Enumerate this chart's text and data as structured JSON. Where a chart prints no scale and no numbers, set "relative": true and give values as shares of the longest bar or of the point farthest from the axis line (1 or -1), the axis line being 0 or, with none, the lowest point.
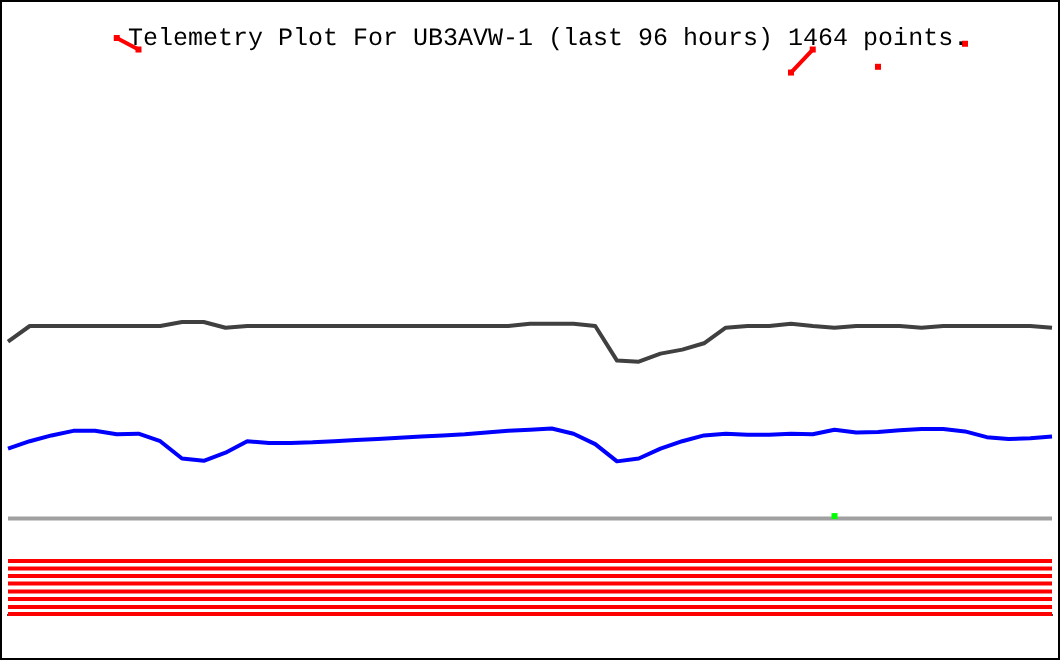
{
  "chart_data": {
    "type": "line",
    "title": "Telemetry Plot For UB3AVW-1 (last 96 hours) 1464 points.",
    "relative": true,
    "marker": "none",
    "categories": [
      null,
      null,
      null,
      null,
      null,
      null,
      null,
      null,
      null,
      null,
      null,
      null,
      null,
      null,
      null,
      null,
      null,
      null,
      null,
      null,
      null,
      null,
      null,
      null,
      null,
      null,
      null,
      null,
      null,
      null,
      null,
      null,
      null,
      null,
      null,
      null,
      null,
      null,
      null,
      null,
      null,
      null,
      null,
      null,
      null,
      null,
      null,
      null,
      null
    ],
    "series": [
      {
        "color": "#404040",
        "values": [
          0.473,
          0.5,
          0.5,
          0.5,
          0.5,
          0.5,
          0.5,
          0.5,
          0.507,
          0.507,
          0.497,
          0.5,
          0.5,
          0.5,
          0.5,
          0.5,
          0.5,
          0.5,
          0.5,
          0.5,
          0.5,
          0.5,
          0.5,
          0.5,
          0.504,
          0.504,
          0.504,
          0.5,
          0.44,
          0.438,
          0.452,
          0.459,
          0.47,
          0.497,
          0.5,
          0.5,
          0.504,
          0.5,
          0.497,
          0.5,
          0.5,
          0.5,
          0.497,
          0.5,
          0.5,
          0.5,
          0.5,
          0.5,
          0.497
        ]
      },
      {
        "color": "#0000ff",
        "values": [
          0.287,
          0.3,
          0.31,
          0.318,
          0.318,
          0.312,
          0.313,
          0.3,
          0.27,
          0.266,
          0.28,
          0.3,
          0.297,
          0.297,
          0.298,
          0.3,
          0.302,
          0.304,
          0.306,
          0.308,
          0.31,
          0.312,
          0.315,
          0.318,
          0.32,
          0.322,
          0.313,
          0.295,
          0.265,
          0.27,
          0.287,
          0.3,
          0.31,
          0.313,
          0.311,
          0.311,
          0.313,
          0.312,
          0.32,
          0.315,
          0.316,
          0.319,
          0.321,
          0.321,
          0.317,
          0.307,
          0.304,
          0.305,
          0.308
        ]
      },
      {
        "color": "#a0a0a0",
        "values": [
          0.166,
          0.166,
          0.166,
          0.166,
          0.166,
          0.166,
          0.166,
          0.166,
          0.166,
          0.166,
          0.166,
          0.166,
          0.166,
          0.166,
          0.166,
          0.166,
          0.166,
          0.166,
          0.166,
          0.166,
          0.166,
          0.166,
          0.166,
          0.166,
          0.166,
          0.166,
          0.166,
          0.166,
          0.166,
          0.166,
          0.166,
          0.166,
          0.166,
          0.166,
          0.166,
          0.166,
          0.166,
          0.166,
          0.166,
          0.166,
          0.166,
          0.166,
          0.166,
          0.166,
          0.166,
          0.166,
          0.166,
          0.166,
          0.166
        ]
      },
      {
        "color": "#ff0000",
        "values": [
          0.092,
          0.092,
          0.092,
          0.092,
          0.092,
          0.092,
          0.092,
          0.092,
          0.092,
          0.092,
          0.092,
          0.092,
          0.092,
          0.092,
          0.092,
          0.092,
          0.092,
          0.092,
          0.092,
          0.092,
          0.092,
          0.092,
          0.092,
          0.092,
          0.092,
          0.092,
          0.092,
          0.092,
          0.092,
          0.092,
          0.092,
          0.092,
          0.092,
          0.092,
          0.092,
          0.092,
          0.092,
          0.092,
          0.092,
          0.092,
          0.092,
          0.092,
          0.092,
          0.092,
          0.092,
          0.092,
          0.092,
          0.092,
          0.092
        ]
      },
      {
        "color": "#ff0000",
        "values": [
          0.079,
          0.079,
          0.079,
          0.079,
          0.079,
          0.079,
          0.079,
          0.079,
          0.079,
          0.079,
          0.079,
          0.079,
          0.079,
          0.079,
          0.079,
          0.079,
          0.079,
          0.079,
          0.079,
          0.079,
          0.079,
          0.079,
          0.079,
          0.079,
          0.079,
          0.079,
          0.079,
          0.079,
          0.079,
          0.079,
          0.079,
          0.079,
          0.079,
          0.079,
          0.079,
          0.079,
          0.079,
          0.079,
          0.079,
          0.079,
          0.079,
          0.079,
          0.079,
          0.079,
          0.079,
          0.079,
          0.079,
          0.079,
          0.079
        ]
      },
      {
        "color": "#ff0000",
        "values": [
          0.066,
          0.066,
          0.066,
          0.066,
          0.066,
          0.066,
          0.066,
          0.066,
          0.066,
          0.066,
          0.066,
          0.066,
          0.066,
          0.066,
          0.066,
          0.066,
          0.066,
          0.066,
          0.066,
          0.066,
          0.066,
          0.066,
          0.066,
          0.066,
          0.066,
          0.066,
          0.066,
          0.066,
          0.066,
          0.066,
          0.066,
          0.066,
          0.066,
          0.066,
          0.066,
          0.066,
          0.066,
          0.066,
          0.066,
          0.066,
          0.066,
          0.066,
          0.066,
          0.066,
          0.066,
          0.066,
          0.066,
          0.066,
          0.066
        ]
      },
      {
        "color": "#ff0000",
        "values": [
          0.053,
          0.053,
          0.053,
          0.053,
          0.053,
          0.053,
          0.053,
          0.053,
          0.053,
          0.053,
          0.053,
          0.053,
          0.053,
          0.053,
          0.053,
          0.053,
          0.053,
          0.053,
          0.053,
          0.053,
          0.053,
          0.053,
          0.053,
          0.053,
          0.053,
          0.053,
          0.053,
          0.053,
          0.053,
          0.053,
          0.053,
          0.053,
          0.053,
          0.053,
          0.053,
          0.053,
          0.053,
          0.053,
          0.053,
          0.053,
          0.053,
          0.053,
          0.053,
          0.053,
          0.053,
          0.053,
          0.053,
          0.053,
          0.053
        ]
      },
      {
        "color": "#ff0000",
        "values": [
          0.039,
          0.039,
          0.039,
          0.039,
          0.039,
          0.039,
          0.039,
          0.039,
          0.039,
          0.039,
          0.039,
          0.039,
          0.039,
          0.039,
          0.039,
          0.039,
          0.039,
          0.039,
          0.039,
          0.039,
          0.039,
          0.039,
          0.039,
          0.039,
          0.039,
          0.039,
          0.039,
          0.039,
          0.039,
          0.039,
          0.039,
          0.039,
          0.039,
          0.039,
          0.039,
          0.039,
          0.039,
          0.039,
          0.039,
          0.039,
          0.039,
          0.039,
          0.039,
          0.039,
          0.039,
          0.039,
          0.039,
          0.039,
          0.039
        ]
      },
      {
        "color": "#ff0000",
        "values": [
          0.026,
          0.026,
          0.026,
          0.026,
          0.026,
          0.026,
          0.026,
          0.026,
          0.026,
          0.026,
          0.026,
          0.026,
          0.026,
          0.026,
          0.026,
          0.026,
          0.026,
          0.026,
          0.026,
          0.026,
          0.026,
          0.026,
          0.026,
          0.026,
          0.026,
          0.026,
          0.026,
          0.026,
          0.026,
          0.026,
          0.026,
          0.026,
          0.026,
          0.026,
          0.026,
          0.026,
          0.026,
          0.026,
          0.026,
          0.026,
          0.026,
          0.026,
          0.026,
          0.026,
          0.026,
          0.026,
          0.026,
          0.026,
          0.026
        ]
      },
      {
        "color": "#ff0000",
        "values": [
          0.012,
          0.012,
          0.012,
          0.012,
          0.012,
          0.012,
          0.012,
          0.012,
          0.012,
          0.012,
          0.012,
          0.012,
          0.012,
          0.012,
          0.012,
          0.012,
          0.012,
          0.012,
          0.012,
          0.012,
          0.012,
          0.012,
          0.012,
          0.012,
          0.012,
          0.012,
          0.012,
          0.012,
          0.012,
          0.012,
          0.012,
          0.012,
          0.012,
          0.012,
          0.012,
          0.012,
          0.012,
          0.012,
          0.012,
          0.012,
          0.012,
          0.012,
          0.012,
          0.012,
          0.012,
          0.012,
          0.012,
          0.012,
          0.012
        ]
      },
      {
        "color": "#ff0000",
        "values": [
          0,
          0,
          0,
          0,
          0,
          0,
          0,
          0,
          0,
          0,
          0,
          0,
          0,
          0,
          0,
          0,
          0,
          0,
          0,
          0,
          0,
          0,
          0,
          0,
          0,
          0,
          0,
          0,
          0,
          0,
          0,
          0,
          0,
          0,
          0,
          0,
          0,
          0,
          0,
          0,
          0,
          0,
          0,
          0,
          0,
          0,
          0,
          0,
          0
        ]
      },
      {
        "marker": "square",
        "color": "#ff0000",
        "values": [
          null,
          null,
          null,
          null,
          null,
          1.0,
          0.98,
          null,
          null,
          null,
          null,
          null,
          null,
          null,
          null,
          null,
          null,
          null,
          null,
          null,
          null,
          null,
          null,
          null,
          null,
          null,
          null,
          null,
          null,
          null,
          null,
          null,
          null,
          null,
          null,
          null,
          0.94,
          0.98,
          null,
          null,
          0.95,
          null,
          null,
          null,
          0.99,
          null,
          null,
          null,
          null
        ]
      },
      {
        "marker": "square",
        "color": "#00ff00",
        "values": [
          null,
          null,
          null,
          null,
          null,
          null,
          null,
          null,
          null,
          null,
          null,
          null,
          null,
          null,
          null,
          null,
          null,
          null,
          null,
          null,
          null,
          null,
          null,
          null,
          null,
          null,
          null,
          null,
          null,
          null,
          null,
          null,
          null,
          null,
          null,
          null,
          null,
          null,
          0.17,
          null,
          null,
          null,
          null,
          null,
          null,
          null,
          null,
          null,
          null
        ]
      }
    ]
  }
}
